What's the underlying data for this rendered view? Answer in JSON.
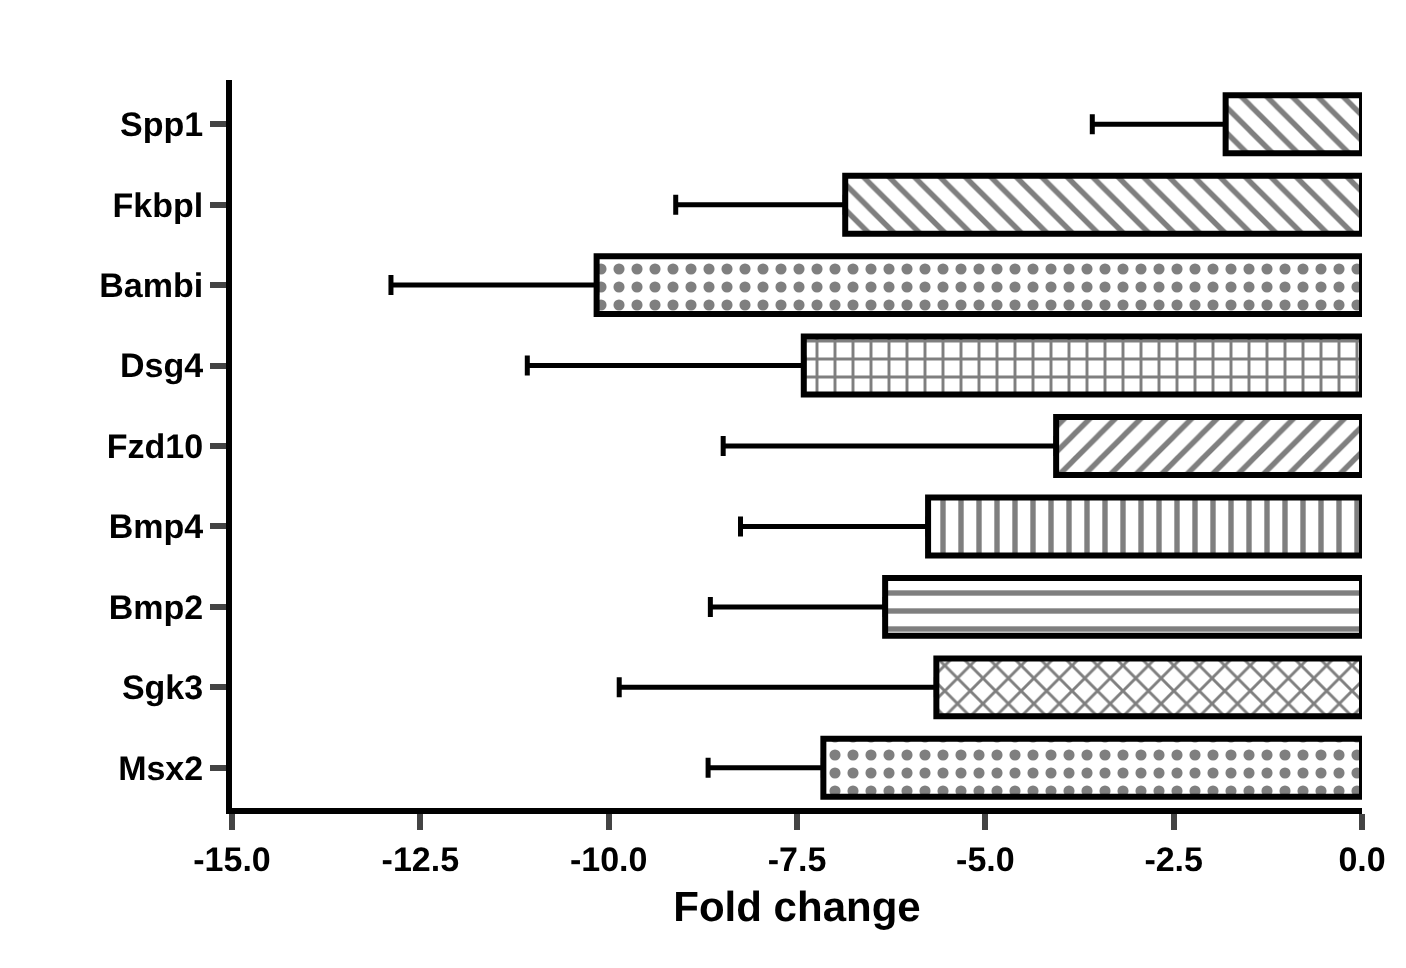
{
  "chart_data": {
    "type": "bar",
    "orientation": "horizontal",
    "xlabel": "Fold change",
    "categories": [
      "Spp1",
      "Fkbpl",
      "Bambi",
      "Dsg4",
      "Fzd10",
      "Bmp4",
      "Bmp2",
      "Sgk3",
      "Msx2"
    ],
    "values": [
      -1.81,
      -6.86,
      -10.16,
      -7.41,
      -4.06,
      -5.76,
      -6.33,
      -5.65,
      -7.15
    ],
    "errors": [
      [
        -3.58,
        -1.81
      ],
      [
        -9.11,
        -6.86
      ],
      [
        -12.89,
        -10.16
      ],
      [
        -11.08,
        -7.41
      ],
      [
        -8.48,
        -4.06
      ],
      [
        -8.25,
        -5.76
      ],
      [
        -8.65,
        -6.33
      ],
      [
        -9.86,
        -5.65
      ],
      [
        -8.68,
        -7.15
      ]
    ],
    "color": "#000000",
    "xlim": [
      -15,
      0
    ],
    "xticks": [
      {
        "value": -15,
        "label": "-15.0"
      },
      {
        "value": -12.5,
        "label": "-12.5"
      },
      {
        "value": -10,
        "label": "-10.0"
      },
      {
        "value": -7.5,
        "label": "-7.5"
      },
      {
        "value": -5,
        "label": "-5.0"
      },
      {
        "value": -2.5,
        "label": "-2.5"
      },
      {
        "value": 0,
        "label": "0.0"
      }
    ],
    "grid": false,
    "legend": false
  }
}
